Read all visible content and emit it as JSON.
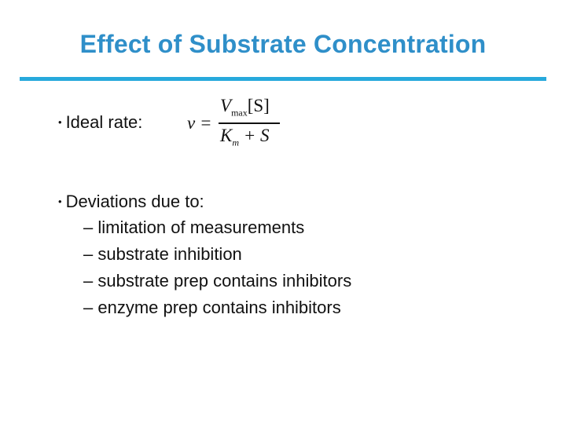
{
  "slide": {
    "title": "Effect of Substrate Concentration",
    "bullet_symbol": "•",
    "ideal_label": "Ideal rate:",
    "formula": {
      "lhs": "v =",
      "num_v": "V",
      "num_sub": "max",
      "num_bracket": "[S]",
      "den_k": "K",
      "den_sub": "m",
      "den_rest": " + S"
    },
    "deviations_label": "Deviations due to:",
    "deviations": [
      "– limitation of measurements",
      "– substrate inhibition",
      "– substrate prep contains inhibitors",
      "– enzyme prep contains inhibitors"
    ]
  },
  "colors": {
    "title": "#2f8fc9",
    "rule": "#27a9dc"
  }
}
